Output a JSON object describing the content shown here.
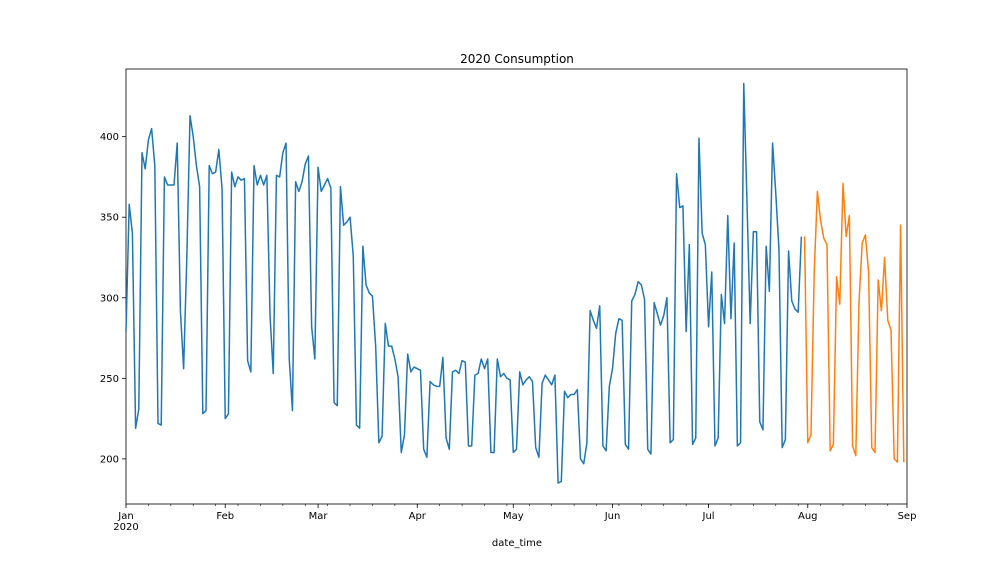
{
  "chart_data": {
    "type": "line",
    "title": "2020 Consumption",
    "xlabel": "date_time",
    "ylabel": "",
    "ylim": [
      172,
      442
    ],
    "x_axis": {
      "start": "2020-01-01",
      "end": "2020-09-01",
      "ticks": [
        {
          "date": "2020-01-01",
          "label": "Jan",
          "sublabel": "2020"
        },
        {
          "date": "2020-02-01",
          "label": "Feb"
        },
        {
          "date": "2020-03-01",
          "label": "Mar"
        },
        {
          "date": "2020-04-01",
          "label": "Apr"
        },
        {
          "date": "2020-05-01",
          "label": "May"
        },
        {
          "date": "2020-06-01",
          "label": "Jun"
        },
        {
          "date": "2020-07-01",
          "label": "Jul"
        },
        {
          "date": "2020-08-01",
          "label": "Aug"
        },
        {
          "date": "2020-09-01",
          "label": "Sep"
        }
      ]
    },
    "y_ticks": [
      200,
      250,
      300,
      350,
      400
    ],
    "grid": false,
    "series": [
      {
        "color": "#1f77b4",
        "start_date": "2020-01-01",
        "values": [
          279,
          358,
          340,
          219,
          231,
          390,
          380,
          398,
          405,
          382,
          222,
          221,
          375,
          370,
          370,
          370,
          396,
          292,
          256,
          325,
          413,
          400,
          382,
          369,
          228,
          230,
          382,
          377,
          378,
          392,
          368,
          225,
          228,
          378,
          369,
          375,
          373,
          374,
          261,
          254,
          382,
          370,
          376,
          370,
          376,
          289,
          253,
          376,
          375,
          390,
          396,
          262,
          230,
          372,
          366,
          372,
          383,
          388,
          282,
          262,
          381,
          366,
          370,
          374,
          368,
          235,
          233,
          369,
          345,
          347,
          350,
          326,
          221,
          219,
          332,
          308,
          303,
          301,
          270,
          210,
          214,
          284,
          270,
          270,
          262,
          251,
          204,
          215,
          265,
          254,
          257,
          256,
          255,
          206,
          201,
          248,
          246,
          245,
          245,
          263,
          213,
          206,
          254,
          255,
          253,
          261,
          260,
          208,
          208,
          252,
          253,
          262,
          256,
          262,
          204,
          204,
          262,
          251,
          253,
          250,
          249,
          204,
          206,
          254,
          246,
          249,
          251,
          248,
          207,
          201,
          247,
          252,
          249,
          246,
          252,
          185,
          186,
          242,
          238,
          240,
          240,
          243,
          200,
          197,
          210,
          292,
          286,
          281,
          295,
          208,
          205,
          245,
          256,
          278,
          287,
          286,
          209,
          206,
          298,
          302,
          310,
          308,
          299,
          206,
          203,
          297,
          290,
          283,
          289,
          300,
          210,
          212,
          377,
          356,
          357,
          279,
          333,
          209,
          213,
          399,
          340,
          333,
          282,
          316,
          208,
          213,
          302,
          284,
          351,
          287,
          334,
          208,
          210,
          433,
          360,
          284,
          341,
          341,
          223,
          218,
          332,
          304,
          396,
          365,
          330,
          207,
          212,
          329,
          298,
          293,
          291,
          338
        ],
        "end_date": "2020-07-31"
      },
      {
        "color": "#ff7f0e",
        "start_date": "2020-07-31",
        "values": [
          338,
          210,
          215,
          315,
          366,
          348,
          337,
          333,
          205,
          209,
          313,
          296,
          371,
          338,
          351,
          208,
          202,
          297,
          334,
          339,
          316,
          207,
          204,
          311,
          292,
          325,
          286,
          280,
          200,
          198,
          345,
          198
        ]
      }
    ]
  }
}
